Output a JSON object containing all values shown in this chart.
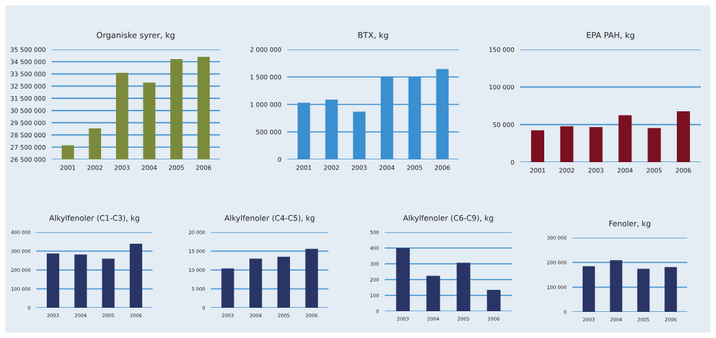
{
  "chart_data": [
    {
      "type": "bar",
      "title": "Organiske syrer, kg",
      "categories": [
        "2001",
        "2002",
        "2003",
        "2004",
        "2005",
        "2006"
      ],
      "values": [
        27650000,
        29040000,
        33590000,
        32780000,
        34710000,
        34900000
      ],
      "color": "#7b8a3a",
      "ylim": [
        26500000,
        35500000
      ],
      "yticks": [
        {
          "value": 26500000,
          "label": "26 500 000"
        },
        {
          "value": 27500000,
          "label": "27 500 000"
        },
        {
          "value": 28500000,
          "label": "28 500 000"
        },
        {
          "value": 29500000,
          "label": "29 500 000"
        },
        {
          "value": 30500000,
          "label": "30 500 000"
        },
        {
          "value": 31500000,
          "label": "31 500 000"
        },
        {
          "value": 32500000,
          "label": "32 500 000"
        },
        {
          "value": 33500000,
          "label": "33 500 000"
        },
        {
          "value": 34500000,
          "label": "34 500 000"
        },
        {
          "value": 35500000,
          "label": "35 500 000"
        }
      ],
      "grid": "y"
    },
    {
      "type": "bar",
      "title": "BTX, kg",
      "categories": [
        "2001",
        "2002",
        "2003",
        "2004",
        "2005",
        "2006"
      ],
      "values": [
        1031000,
        1086000,
        868000,
        1500000,
        1500000,
        1645000
      ],
      "color": "#3a8fd0",
      "ylim": [
        0,
        2000000
      ],
      "yticks": [
        0,
        {
          "value": 500000,
          "label": "500 000"
        },
        {
          "value": 1000000,
          "label": "1 000 000"
        },
        {
          "value": 1500000,
          "label": "1 500 000"
        },
        {
          "value": 2000000,
          "label": "2 000 000"
        }
      ],
      "grid": "y"
    },
    {
      "type": "bar",
      "title": "EPA PAH, kg",
      "categories": [
        "2001",
        "2002",
        "2003",
        "2004",
        "2005",
        "2006"
      ],
      "values": [
        42400,
        47900,
        46600,
        62500,
        45400,
        67700
      ],
      "color": "#7b1020",
      "ylim": [
        0,
        150000
      ],
      "yticks": [
        0,
        {
          "value": 50000,
          "label": "50 000"
        },
        {
          "value": 100000,
          "label": "100 000"
        },
        {
          "value": 150000,
          "label": "150 000"
        }
      ],
      "grid": "y"
    },
    {
      "type": "bar",
      "title": "Alkylfenoler (C1-C3), kg",
      "categories": [
        "2003",
        "2004",
        "2005",
        "2006"
      ],
      "values": [
        287000,
        282000,
        260000,
        339000
      ],
      "color": "#283566",
      "ylim": [
        0,
        400000
      ],
      "yticks": [
        0,
        {
          "value": 100000,
          "label": "100 000"
        },
        {
          "value": 200000,
          "label": "200 000"
        },
        {
          "value": 300000,
          "label": "300 000"
        },
        {
          "value": 400000,
          "label": "400 000"
        }
      ],
      "grid": "y"
    },
    {
      "type": "bar",
      "title": "Alkylfenoler (C4-C5), kg",
      "categories": [
        "2003",
        "2004",
        "2005",
        "2006"
      ],
      "values": [
        10400,
        13000,
        13500,
        15600
      ],
      "color": "#283566",
      "ylim": [
        0,
        20000
      ],
      "yticks": [
        0,
        {
          "value": 5000,
          "label": "5 000"
        },
        {
          "value": 10000,
          "label": "10 000"
        },
        {
          "value": 15000,
          "label": "15 000"
        },
        {
          "value": 20000,
          "label": "20 000"
        }
      ],
      "grid": "y"
    },
    {
      "type": "bar",
      "title": "Alkylfenoler (C6-C9), kg",
      "categories": [
        "2003",
        "2004",
        "2005",
        "2006"
      ],
      "values": [
        400,
        224,
        306,
        135
      ],
      "color": "#283566",
      "ylim": [
        0,
        500
      ],
      "yticks": [
        0,
        100,
        200,
        300,
        400,
        500
      ],
      "grid": "y"
    },
    {
      "type": "bar",
      "title": "Fenoler, kg",
      "categories": [
        "2003",
        "2004",
        "2005",
        "2006"
      ],
      "values": [
        185000,
        209000,
        174000,
        181000
      ],
      "color": "#283566",
      "ylim": [
        0,
        300000
      ],
      "yticks": [
        0,
        {
          "value": 100000,
          "label": "100 000"
        },
        {
          "value": 200000,
          "label": "200 000"
        },
        {
          "value": 300000,
          "label": "300 000"
        }
      ],
      "grid": "y"
    }
  ]
}
